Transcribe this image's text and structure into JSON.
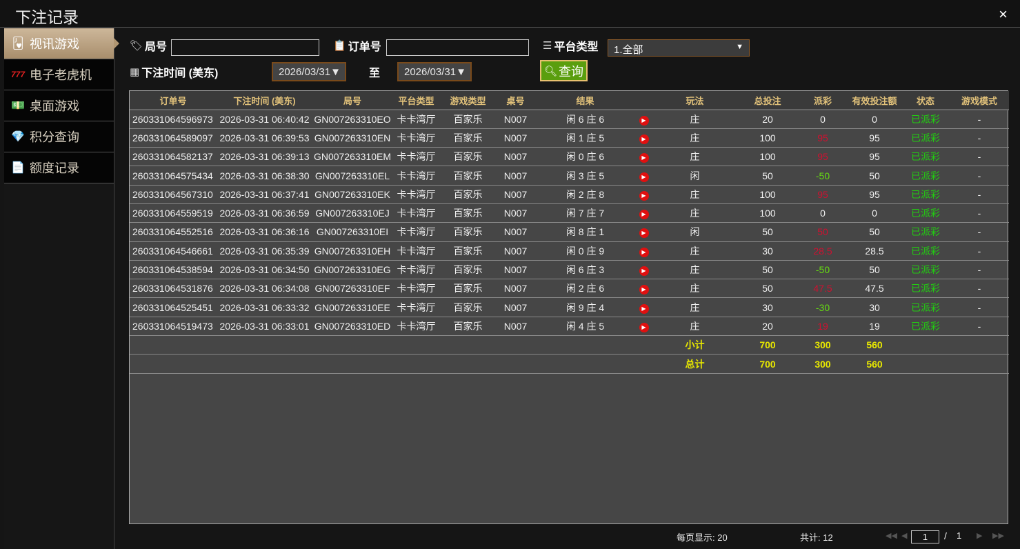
{
  "window": {
    "title": "下注记录",
    "close_icon": "×"
  },
  "sidebar": {
    "items": [
      {
        "label": "视讯游戏",
        "icon": "cards-icon",
        "glyph": "🂻",
        "active": true
      },
      {
        "label": "电子老虎机",
        "icon": "slot-777-icon",
        "glyph": "777",
        "active": false
      },
      {
        "label": "桌面游戏",
        "icon": "money-icon",
        "glyph": "💵",
        "active": false
      },
      {
        "label": "积分查询",
        "icon": "diamond-icon",
        "glyph": "💎",
        "active": false
      },
      {
        "label": "额度记录",
        "icon": "document-icon",
        "glyph": "📄",
        "active": false
      }
    ]
  },
  "filters": {
    "round_label": "局号",
    "round_value": "",
    "order_label": "订单号",
    "order_value": "",
    "platform_label": "平台类型",
    "platform_value": "1.全部",
    "time_label": "下注时间 (美东)",
    "date_from": "2026/03/31▼",
    "to_label": "至",
    "date_to": "2026/03/31▼",
    "query_label": "查询"
  },
  "table": {
    "headers": [
      "订单号",
      "下注时间 (美东)",
      "局号",
      "平台类型",
      "游戏类型",
      "桌号",
      "结果",
      "",
      "玩法",
      "总投注",
      "派彩",
      "有效投注额",
      "状态",
      "游戏模式"
    ],
    "rows": [
      [
        "260331064596973",
        "2026-03-31 06:40:42",
        "GN007263310EO",
        "卡卡湾厅",
        "百家乐",
        "N007",
        "闲 6 庄 6",
        "庄",
        "20",
        "0",
        "0",
        "已派彩",
        "-"
      ],
      [
        "260331064589097",
        "2026-03-31 06:39:53",
        "GN007263310EN",
        "卡卡湾厅",
        "百家乐",
        "N007",
        "闲 1 庄 5",
        "庄",
        "100",
        "95",
        "95",
        "已派彩",
        "-"
      ],
      [
        "260331064582137",
        "2026-03-31 06:39:13",
        "GN007263310EM",
        "卡卡湾厅",
        "百家乐",
        "N007",
        "闲 0 庄 6",
        "庄",
        "100",
        "95",
        "95",
        "已派彩",
        "-"
      ],
      [
        "260331064575434",
        "2026-03-31 06:38:30",
        "GN007263310EL",
        "卡卡湾厅",
        "百家乐",
        "N007",
        "闲 3 庄 5",
        "闲",
        "50",
        "-50",
        "50",
        "已派彩",
        "-"
      ],
      [
        "260331064567310",
        "2026-03-31 06:37:41",
        "GN007263310EK",
        "卡卡湾厅",
        "百家乐",
        "N007",
        "闲 2 庄 8",
        "庄",
        "100",
        "95",
        "95",
        "已派彩",
        "-"
      ],
      [
        "260331064559519",
        "2026-03-31 06:36:59",
        "GN007263310EJ",
        "卡卡湾厅",
        "百家乐",
        "N007",
        "闲 7 庄 7",
        "庄",
        "100",
        "0",
        "0",
        "已派彩",
        "-"
      ],
      [
        "260331064552516",
        "2026-03-31 06:36:16",
        "GN007263310EI",
        "卡卡湾厅",
        "百家乐",
        "N007",
        "闲 8 庄 1",
        "闲",
        "50",
        "50",
        "50",
        "已派彩",
        "-"
      ],
      [
        "260331064546661",
        "2026-03-31 06:35:39",
        "GN007263310EH",
        "卡卡湾厅",
        "百家乐",
        "N007",
        "闲 0 庄 9",
        "庄",
        "30",
        "28.5",
        "28.5",
        "已派彩",
        "-"
      ],
      [
        "260331064538594",
        "2026-03-31 06:34:50",
        "GN007263310EG",
        "卡卡湾厅",
        "百家乐",
        "N007",
        "闲 6 庄 3",
        "庄",
        "50",
        "-50",
        "50",
        "已派彩",
        "-"
      ],
      [
        "260331064531876",
        "2026-03-31 06:34:08",
        "GN007263310EF",
        "卡卡湾厅",
        "百家乐",
        "N007",
        "闲 2 庄 6",
        "庄",
        "50",
        "47.5",
        "47.5",
        "已派彩",
        "-"
      ],
      [
        "260331064525451",
        "2026-03-31 06:33:32",
        "GN007263310EE",
        "卡卡湾厅",
        "百家乐",
        "N007",
        "闲 9 庄 4",
        "庄",
        "30",
        "-30",
        "30",
        "已派彩",
        "-"
      ],
      [
        "260331064519473",
        "2026-03-31 06:33:01",
        "GN007263310ED",
        "卡卡湾厅",
        "百家乐",
        "N007",
        "闲 4 庄 5",
        "庄",
        "20",
        "19",
        "19",
        "已派彩",
        "-"
      ]
    ],
    "subtotal": {
      "label": "小计",
      "total_bet": "700",
      "payout": "300",
      "valid_bet": "560"
    },
    "total": {
      "label": "总计",
      "total_bet": "700",
      "payout": "300",
      "valid_bet": "560"
    }
  },
  "colors": {
    "win": "#d01030",
    "lose": "#66dd11",
    "status": "#22cc11",
    "header": "#e2c27a",
    "sum": "#e8e800",
    "query_button": "#5a9e0e"
  },
  "pagination": {
    "per_page": "每页显示: 20",
    "total": "共计: 12",
    "current_page": "1",
    "separator": "/",
    "total_pages": "1"
  }
}
